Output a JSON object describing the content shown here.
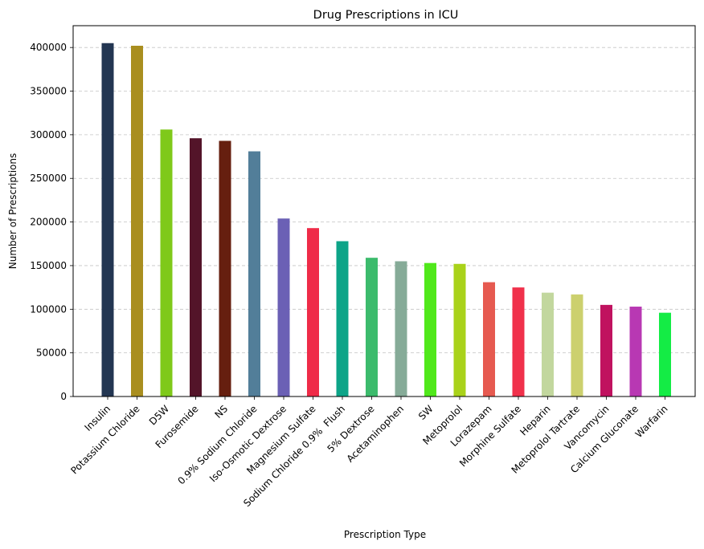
{
  "chart_data": {
    "type": "bar",
    "title": "Drug Prescriptions in ICU",
    "xlabel": "Prescription Type",
    "ylabel": "Number of Prescriptions",
    "ylim": [
      0,
      425000
    ],
    "yticks": [
      0,
      50000,
      100000,
      150000,
      200000,
      250000,
      300000,
      350000,
      400000
    ],
    "grid": "y, dashed",
    "categories": [
      "Insulin",
      "Potassium Chloride",
      "D5W",
      "Furosemide",
      "NS",
      "0.9% Sodium Chloride",
      "Iso-Osmotic Dextrose",
      "Magnesium Sulfate",
      "Sodium Chloride 0.9%  Flush",
      "5% Dextrose",
      "Acetaminophen",
      "SW",
      "Metoprolol",
      "Lorazepam",
      "Morphine Sulfate",
      "Heparin",
      "Metoprolol Tartrate",
      "Vancomycin",
      "Calcium Gluconate",
      "Warfarin"
    ],
    "values": [
      405000,
      402000,
      306000,
      296000,
      293000,
      281000,
      204000,
      193000,
      178000,
      159000,
      155000,
      153000,
      152000,
      131000,
      125000,
      119000,
      117000,
      105000,
      103000,
      96000
    ],
    "colors": [
      "#233652",
      "#a98e1f",
      "#7fc91a",
      "#531429",
      "#661f0f",
      "#527e99",
      "#6b60b5",
      "#ef2b48",
      "#0da488",
      "#3cbb6c",
      "#86ab98",
      "#50e81b",
      "#a9d21a",
      "#e65a50",
      "#f0314b",
      "#c2d79e",
      "#ccd06e",
      "#c0125f",
      "#b838b3",
      "#14ec45"
    ]
  }
}
